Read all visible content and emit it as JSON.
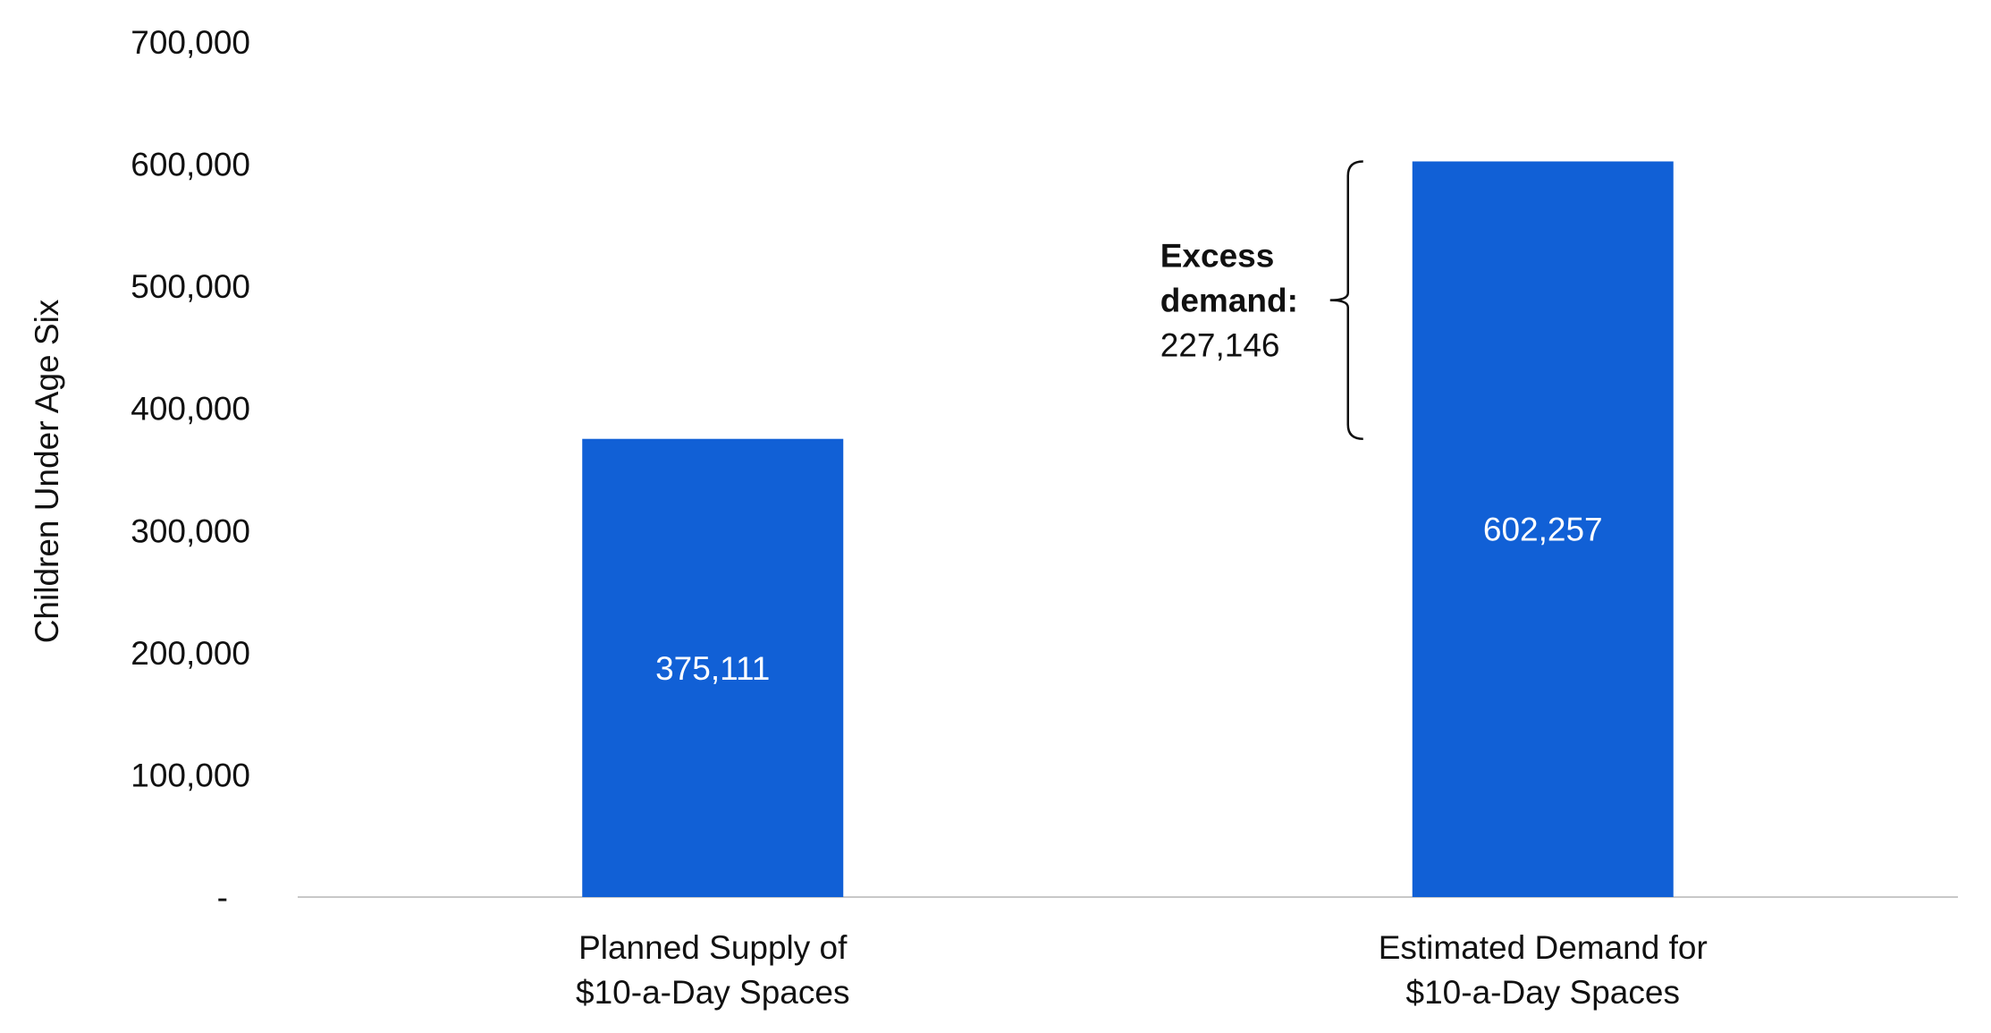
{
  "chart_data": {
    "type": "bar",
    "categories": [
      [
        "Planned Supply of",
        "$10-a-Day Spaces"
      ],
      [
        "Estimated Demand for",
        "$10-a-Day Spaces"
      ]
    ],
    "values": [
      375111,
      602257
    ],
    "data_labels": [
      "375,111",
      "602,257"
    ],
    "ylabel": "Children Under Age Six",
    "ylim": [
      0,
      700000
    ],
    "yticks": [
      0,
      100000,
      200000,
      300000,
      400000,
      500000,
      600000,
      700000
    ],
    "ytick_labels": [
      "-",
      "100,000",
      "200,000",
      "300,000",
      "400,000",
      "500,000",
      "600,000",
      "700,000"
    ],
    "grid": false,
    "bar_color": "#1160d6",
    "annotation": {
      "line1": "Excess",
      "line2": "demand:",
      "value_label": "227,146",
      "from": 375111,
      "to": 602257
    }
  }
}
